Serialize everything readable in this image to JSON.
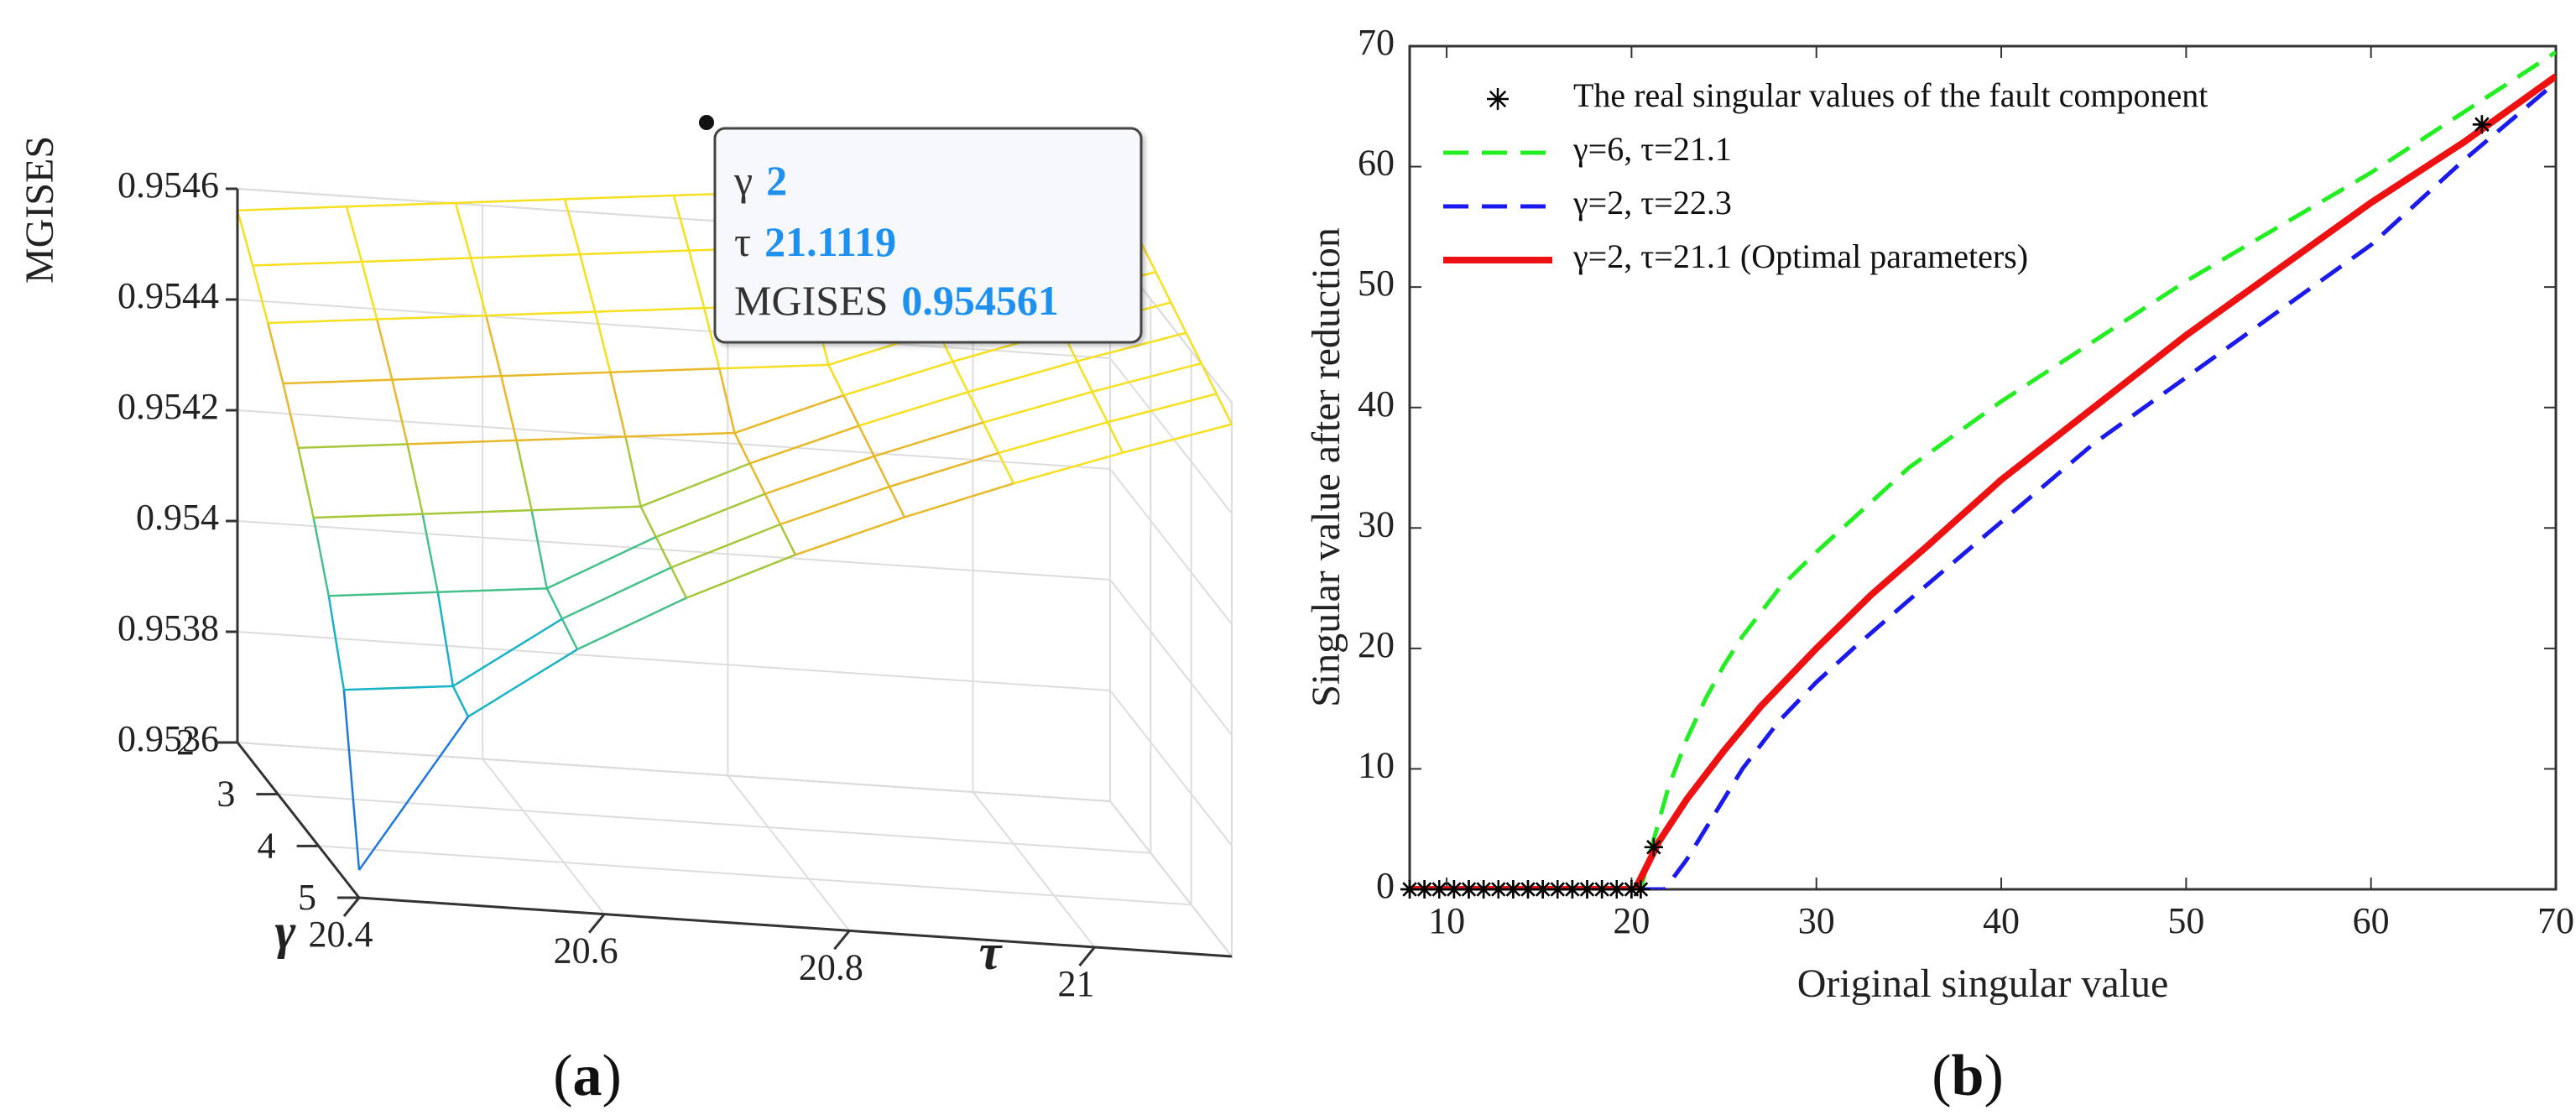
{
  "chart_data": [
    {
      "type": "surface",
      "panel_label": "a",
      "zlabel": "MGISES",
      "xlabel": "τ",
      "ylabel": "γ",
      "x_ticks": [
        "20.4",
        "20.6",
        "20.8",
        "21"
      ],
      "y_ticks": [
        "2",
        "3",
        "4",
        "5"
      ],
      "z_ticks": [
        "0.9546",
        "0.9544",
        "0.9542",
        "0.954",
        "0.9538",
        "0.9536"
      ],
      "x_range": [
        20.4,
        21.1119
      ],
      "y_range": [
        2,
        5
      ],
      "z_range": [
        0.9536,
        0.9546
      ],
      "datatip": {
        "label_gamma": "γ",
        "value_gamma": "2",
        "label_tau": "τ",
        "value_tau": "21.1119",
        "label_mgises": "MGISES",
        "value_mgises": "0.954561"
      },
      "colormap": [
        "#3b2bd6",
        "#1f78e0",
        "#17b2c8",
        "#45c08a",
        "#a5c83a",
        "#e8b828",
        "#f6e01e"
      ]
    },
    {
      "type": "line",
      "panel_label": "b",
      "xlabel": "Original singular value",
      "ylabel": "Singular value after reduction",
      "xlim": [
        8,
        70
      ],
      "ylim": [
        0,
        70
      ],
      "x_ticks": [
        10,
        20,
        30,
        40,
        50,
        60,
        70
      ],
      "y_ticks": [
        0,
        10,
        20,
        30,
        40,
        50,
        60,
        70
      ],
      "series": [
        {
          "name": "The real singular values of the fault component",
          "style": "markers",
          "color": "#000000",
          "x": [
            8,
            8.8,
            9.6,
            10.4,
            11.2,
            12,
            12.8,
            13.6,
            14.4,
            15.2,
            16,
            16.8,
            17.6,
            18.4,
            19.2,
            20,
            20.5,
            21.2,
            66
          ],
          "y": [
            0,
            0,
            0,
            0,
            0,
            0,
            0,
            0,
            0,
            0,
            0,
            0,
            0,
            0,
            0,
            0,
            0,
            3.5,
            63.5
          ]
        },
        {
          "name": "γ=6, τ=21.1",
          "style": "dashed",
          "color": "#22ee22",
          "x": [
            8,
            20.5,
            21,
            22,
            23,
            24,
            25,
            26,
            28,
            30,
            35,
            40,
            45,
            50,
            55,
            60,
            65,
            70
          ],
          "y": [
            0,
            0,
            3,
            8.5,
            12.5,
            15.8,
            18.6,
            21,
            25,
            28,
            35,
            40.5,
            45.5,
            50.5,
            55,
            59.5,
            64.5,
            69.5
          ]
        },
        {
          "name": "γ=2, τ=22.3",
          "style": "dashed",
          "color": "#1a1aee",
          "x": [
            8,
            21.8,
            23,
            24,
            25,
            26,
            28,
            30,
            32,
            35,
            40,
            45,
            50,
            55,
            60,
            65,
            70
          ],
          "y": [
            0,
            0,
            2.5,
            5,
            7.5,
            10,
            14,
            17.2,
            20,
            24,
            30.5,
            37,
            42.5,
            48,
            53.5,
            60.5,
            67
          ]
        },
        {
          "name": "γ=2, τ=21.1 (Optimal parameters)",
          "style": "solid",
          "color": "#ee1111",
          "x": [
            8,
            20.2,
            21.5,
            23,
            25,
            27,
            30,
            33,
            36,
            40,
            45,
            50,
            55,
            60,
            65,
            70
          ],
          "y": [
            0,
            0,
            4,
            7.5,
            11.5,
            15.2,
            20,
            24.5,
            28.5,
            34,
            40,
            46,
            51.5,
            57,
            62,
            67.5
          ]
        }
      ]
    }
  ]
}
